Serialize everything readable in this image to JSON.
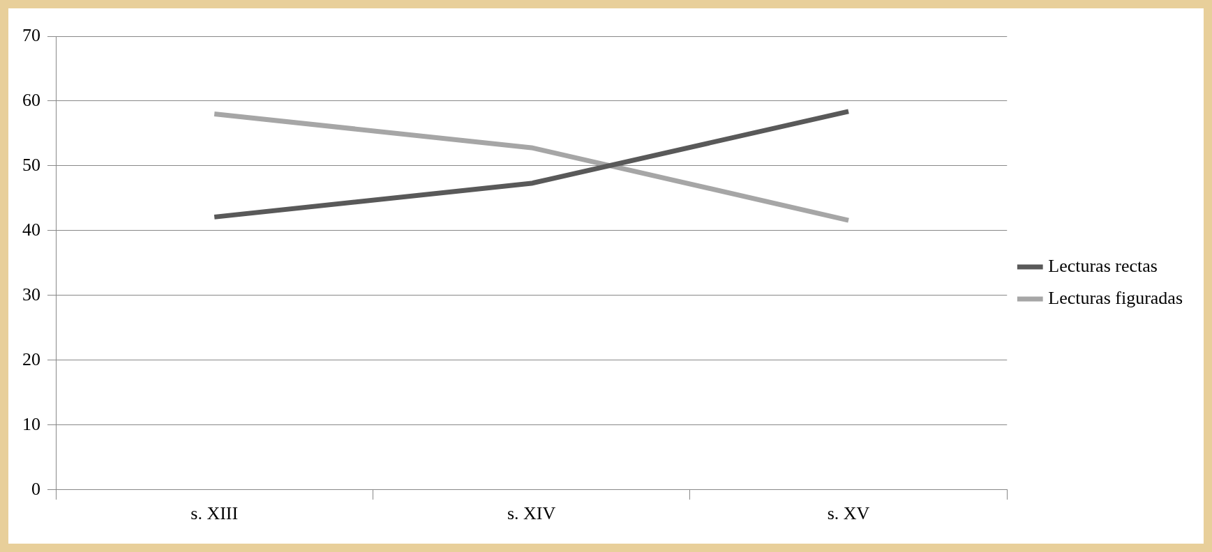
{
  "chart_data": {
    "type": "line",
    "categories": [
      "s. XIII",
      "s. XIV",
      "s. XV"
    ],
    "series": [
      {
        "name": "Lecturas rectas",
        "color": "#595959",
        "values": [
          42.1,
          47.3,
          58.4
        ]
      },
      {
        "name": "Lecturas figuradas",
        "color": "#a6a6a6",
        "values": [
          58.0,
          52.8,
          41.6
        ]
      }
    ],
    "ylim": [
      0,
      70
    ],
    "yticks": [
      0,
      10,
      20,
      30,
      40,
      50,
      60,
      70
    ],
    "grid": "y",
    "legend": "right",
    "marker": "none",
    "line_style": "solid"
  }
}
